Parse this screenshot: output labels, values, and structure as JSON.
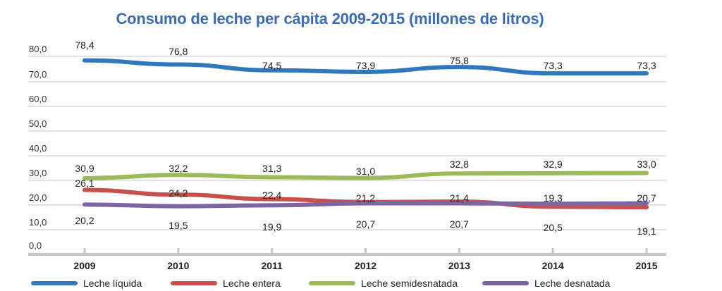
{
  "chart_data": {
    "type": "line",
    "title": "Consumo de leche per cápita 2009-2015 (millones de litros)",
    "xlabel": "",
    "ylabel": "",
    "x": [
      "2009",
      "2010",
      "2011",
      "2012",
      "2013",
      "2014",
      "2015"
    ],
    "yticks": [
      "0,0",
      "10,0",
      "20,0",
      "30,0",
      "40,0",
      "50,0",
      "60,0",
      "70,0",
      "80,0"
    ],
    "ylim": [
      0,
      80
    ],
    "grid": true,
    "legend_position": "bottom",
    "series": [
      {
        "name": "Leche líquida",
        "color": "#2f78bd",
        "values": [
          78.4,
          76.8,
          74.5,
          73.9,
          75.8,
          73.3,
          73.3
        ],
        "labels": [
          "78,4",
          "76,8",
          "74,5",
          "73,9",
          "75,8",
          "73,3",
          "73,3"
        ],
        "label_side": "above"
      },
      {
        "name": "Leche entera",
        "color": "#c8504b",
        "values": [
          26.1,
          24.2,
          22.4,
          21.2,
          21.4,
          19.3,
          19.1
        ],
        "labels": [
          "26,1",
          "24,2",
          "22,4",
          "21,2",
          "21,4",
          "19,3",
          "19,1"
        ],
        "label_side": "mixed"
      },
      {
        "name": "Leche semidesnatada",
        "color": "#9bbb59",
        "values": [
          30.9,
          32.2,
          31.3,
          31.0,
          32.8,
          32.9,
          33.0
        ],
        "labels": [
          "30,9",
          "32,2",
          "31,3",
          "31,0",
          "32,8",
          "32,9",
          "33,0"
        ],
        "label_side": "above"
      },
      {
        "name": "Leche desnatada",
        "color": "#7f63a6",
        "values": [
          20.2,
          19.5,
          19.9,
          20.7,
          20.7,
          20.5,
          20.7
        ],
        "labels": [
          "20,2",
          "19,5",
          "19,9",
          "20,7",
          "20,7",
          "20,5",
          "20,7"
        ],
        "label_side": "mixed"
      }
    ]
  }
}
